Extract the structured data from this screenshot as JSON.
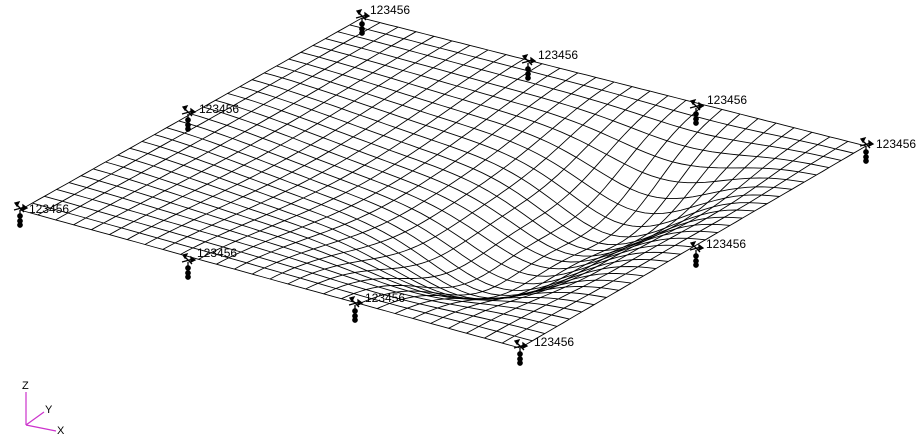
{
  "constraint_label": "123456",
  "constraints": [
    {
      "id": "corner-back",
      "label": "123456"
    },
    {
      "id": "edge-back-right",
      "label": "123456"
    },
    {
      "id": "corner-right-mid",
      "label": "123456"
    },
    {
      "id": "corner-right",
      "label": "123456"
    },
    {
      "id": "edge-back-left",
      "label": "123456"
    },
    {
      "id": "corner-left",
      "label": "123456"
    },
    {
      "id": "edge-front-left",
      "label": "123456"
    },
    {
      "id": "center-front",
      "label": "123456"
    },
    {
      "id": "edge-front-right",
      "label": "123456"
    },
    {
      "id": "corner-front",
      "label": "123456"
    }
  ],
  "axes": {
    "x": "X",
    "y": "Y",
    "z": "Z"
  },
  "colors": {
    "mesh": "#000000",
    "triad": "#cc33cc",
    "background": "#ffffff"
  },
  "icons": {
    "constraint": "constraint-glyph-icon",
    "triad": "coordinate-triad-icon"
  }
}
